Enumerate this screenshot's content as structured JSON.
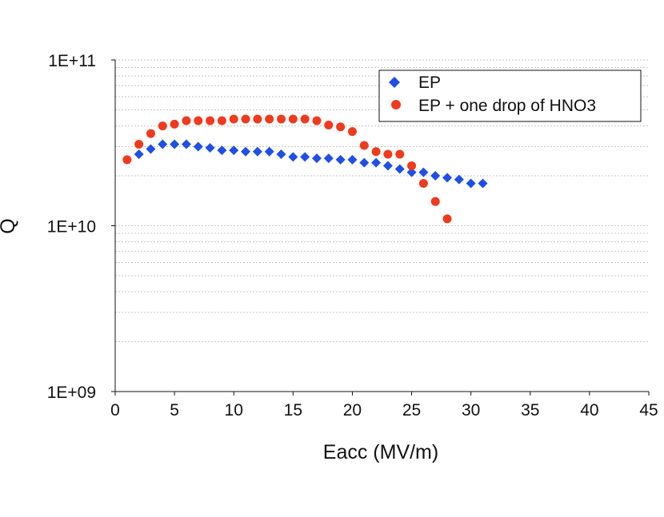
{
  "chart_data": {
    "type": "scatter",
    "title": "",
    "xlabel": "Eacc (MV/m)",
    "ylabel": "Q",
    "xlim": [
      0,
      45
    ],
    "ylim": [
      1000000000.0,
      100000000000.0
    ],
    "yscale": "log",
    "xticks": [
      0,
      5,
      10,
      15,
      20,
      25,
      30,
      35,
      40,
      45
    ],
    "xtick_labels": [
      "0",
      "5",
      "10",
      "15",
      "20",
      "25",
      "30",
      "35",
      "40",
      "45"
    ],
    "yticks": [
      1000000000.0,
      10000000000.0,
      100000000000.0
    ],
    "ytick_labels": [
      "1E+09",
      "1E+10",
      "1E+11"
    ],
    "grid": "horizontal minor gridlines",
    "legend_position": "top-right",
    "series": [
      {
        "name": "EP",
        "marker": "diamond",
        "color": "#1f4fe6",
        "x": [
          2,
          3,
          4,
          5,
          6,
          7,
          8,
          9,
          10,
          11,
          12,
          13,
          14,
          15,
          16,
          17,
          18,
          19,
          20,
          21,
          22,
          23,
          24,
          25,
          26,
          27,
          28,
          29,
          30,
          31
        ],
        "y": [
          27000000000.0,
          29000000000.0,
          31000000000.0,
          31000000000.0,
          31000000000.0,
          30000000000.0,
          29500000000.0,
          28500000000.0,
          28500000000.0,
          28000000000.0,
          28000000000.0,
          28000000000.0,
          27000000000.0,
          26000000000.0,
          26000000000.0,
          25500000000.0,
          25500000000.0,
          25000000000.0,
          25000000000.0,
          24000000000.0,
          24000000000.0,
          23000000000.0,
          22000000000.0,
          21000000000.0,
          21000000000.0,
          20000000000.0,
          19500000000.0,
          19000000000.0,
          18000000000.0,
          18000000000.0
        ]
      },
      {
        "name": "EP + one drop of HNO3",
        "marker": "circle",
        "color": "#f03a1e",
        "x": [
          1,
          2,
          3,
          4,
          5,
          6,
          7,
          8,
          9,
          10,
          11,
          12,
          13,
          14,
          15,
          16,
          17,
          18,
          19,
          20,
          21,
          22,
          23,
          24,
          25,
          26,
          27,
          28
        ],
        "y": [
          25000000000.0,
          31000000000.0,
          36000000000.0,
          40000000000.0,
          41000000000.0,
          43000000000.0,
          43000000000.0,
          43000000000.0,
          43000000000.0,
          44000000000.0,
          44000000000.0,
          44000000000.0,
          44000000000.0,
          44000000000.0,
          44000000000.0,
          44000000000.0,
          43000000000.0,
          40500000000.0,
          39500000000.0,
          37000000000.0,
          30500000000.0,
          28000000000.0,
          27000000000.0,
          27000000000.0,
          23000000000.0,
          18000000000.0,
          14000000000.0,
          11000000000.0
        ]
      }
    ]
  }
}
